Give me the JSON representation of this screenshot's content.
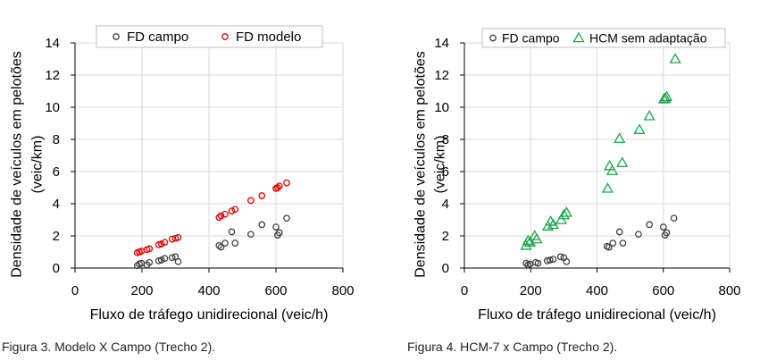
{
  "colors": {
    "campo": "#404040",
    "modelo": "#e00000",
    "hcm": "#1aa64a",
    "grid": "#d9d9d9",
    "axis": "#000000"
  },
  "captions": {
    "fig3": "Figura 3. Modelo X Campo (Trecho 2).",
    "fig4": "Figura 4. HCM-7 x Campo (Trecho 2)."
  },
  "chart_data": [
    {
      "type": "scatter",
      "xlabel": "Fluxo de tráfego unidirecional (veic/h)",
      "ylabel": [
        "Densidade de veículos em pelotões",
        "(veic/km)"
      ],
      "xlim": [
        0,
        800
      ],
      "ylim": [
        0,
        14
      ],
      "xticks": [
        0,
        200,
        400,
        600,
        800
      ],
      "yticks": [
        0,
        2,
        4,
        6,
        8,
        10,
        12,
        14
      ],
      "grid": true,
      "legend_position": "top",
      "series": [
        {
          "name": "FD campo",
          "marker": "circle",
          "color": "#404040",
          "points": [
            [
              186,
              0.15
            ],
            [
              192,
              0.25
            ],
            [
              198,
              0.3
            ],
            [
              215,
              0.2
            ],
            [
              222,
              0.35
            ],
            [
              250,
              0.45
            ],
            [
              258,
              0.5
            ],
            [
              268,
              0.6
            ],
            [
              290,
              0.65
            ],
            [
              300,
              0.7
            ],
            [
              308,
              0.4
            ],
            [
              430,
              1.4
            ],
            [
              436,
              1.3
            ],
            [
              448,
              1.55
            ],
            [
              468,
              2.25
            ],
            [
              478,
              1.55
            ],
            [
              525,
              2.1
            ],
            [
              558,
              2.7
            ],
            [
              600,
              2.55
            ],
            [
              605,
              2.05
            ],
            [
              610,
              2.2
            ],
            [
              632,
              3.1
            ]
          ]
        },
        {
          "name": "FD modelo",
          "marker": "circle",
          "color": "#e00000",
          "points": [
            [
              186,
              0.95
            ],
            [
              192,
              1.0
            ],
            [
              198,
              1.05
            ],
            [
              215,
              1.15
            ],
            [
              222,
              1.2
            ],
            [
              250,
              1.45
            ],
            [
              258,
              1.5
            ],
            [
              268,
              1.6
            ],
            [
              290,
              1.8
            ],
            [
              300,
              1.85
            ],
            [
              308,
              1.9
            ],
            [
              430,
              3.15
            ],
            [
              436,
              3.25
            ],
            [
              448,
              3.35
            ],
            [
              468,
              3.55
            ],
            [
              478,
              3.65
            ],
            [
              525,
              4.2
            ],
            [
              558,
              4.5
            ],
            [
              600,
              4.95
            ],
            [
              605,
              5.0
            ],
            [
              610,
              5.1
            ],
            [
              632,
              5.3
            ]
          ]
        }
      ]
    },
    {
      "type": "scatter",
      "xlabel": "Fluxo de tráfego unidirecional (veic/h)",
      "ylabel": [
        "Densidade de veículos em pelotões",
        "(veic/km)"
      ],
      "xlim": [
        0,
        800
      ],
      "ylim": [
        0,
        14
      ],
      "xticks": [
        0,
        200,
        400,
        600,
        800
      ],
      "yticks": [
        0,
        2,
        4,
        6,
        8,
        10,
        12,
        14
      ],
      "grid": true,
      "legend_position": "top",
      "series": [
        {
          "name": "FD campo",
          "marker": "circle",
          "color": "#404040",
          "points": [
            [
              186,
              0.3
            ],
            [
              192,
              0.2
            ],
            [
              198,
              0.25
            ],
            [
              215,
              0.35
            ],
            [
              222,
              0.3
            ],
            [
              250,
              0.45
            ],
            [
              258,
              0.5
            ],
            [
              268,
              0.55
            ],
            [
              290,
              0.7
            ],
            [
              300,
              0.65
            ],
            [
              308,
              0.4
            ],
            [
              430,
              1.35
            ],
            [
              436,
              1.3
            ],
            [
              448,
              1.55
            ],
            [
              468,
              2.25
            ],
            [
              478,
              1.55
            ],
            [
              525,
              2.1
            ],
            [
              558,
              2.7
            ],
            [
              600,
              2.55
            ],
            [
              605,
              2.05
            ],
            [
              610,
              2.2
            ],
            [
              632,
              3.1
            ]
          ]
        },
        {
          "name": "HCM sem adaptação",
          "marker": "triangle",
          "color": "#1aa64a",
          "points": [
            [
              186,
              1.4
            ],
            [
              192,
              1.7
            ],
            [
              198,
              1.6
            ],
            [
              212,
              2.0
            ],
            [
              218,
              1.8
            ],
            [
              252,
              2.6
            ],
            [
              260,
              2.9
            ],
            [
              268,
              2.7
            ],
            [
              292,
              3.0
            ],
            [
              300,
              3.3
            ],
            [
              308,
              3.45
            ],
            [
              432,
              4.95
            ],
            [
              438,
              6.35
            ],
            [
              446,
              6.05
            ],
            [
              468,
              8.05
            ],
            [
              476,
              6.55
            ],
            [
              528,
              8.6
            ],
            [
              558,
              9.45
            ],
            [
              602,
              10.5
            ],
            [
              606,
              10.55
            ],
            [
              610,
              10.65
            ],
            [
              636,
              13.0
            ]
          ]
        }
      ]
    }
  ]
}
